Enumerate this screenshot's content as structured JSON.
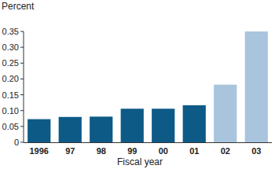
{
  "chart_data": {
    "type": "bar",
    "y_label": "Percent",
    "x_label": "Fiscal year",
    "categories": [
      "1996",
      "97",
      "98",
      "99",
      "00",
      "01",
      "02",
      "03"
    ],
    "values": [
      0.073,
      0.08,
      0.081,
      0.106,
      0.106,
      0.117,
      0.182,
      0.35
    ],
    "colors": [
      "#0d5a86",
      "#0d5a86",
      "#0d5a86",
      "#0d5a86",
      "#0d5a86",
      "#0d5a86",
      "#a9c5dd",
      "#a9c5dd"
    ],
    "ylim": [
      0,
      0.35
    ],
    "yticks": [
      0,
      0.05,
      {
        "value": 0.1,
        "label": "0.10"
      },
      0.15,
      {
        "value": 0.2,
        "label": "0.20"
      },
      0.25,
      {
        "value": 0.3,
        "label": "0.30"
      },
      0.35
    ],
    "grid": false
  }
}
